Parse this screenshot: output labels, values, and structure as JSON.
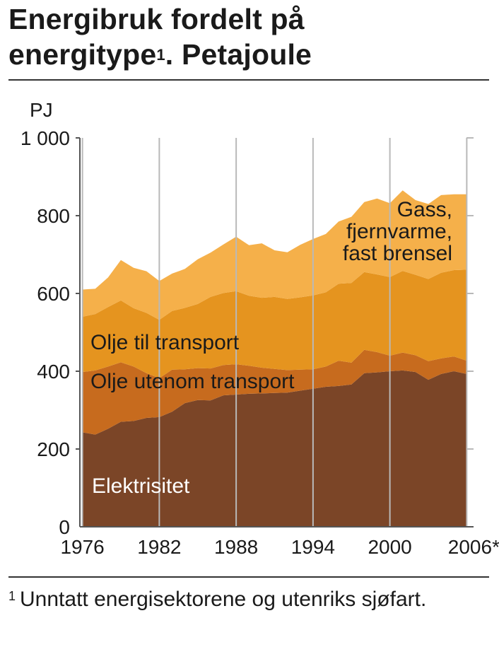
{
  "title": {
    "main_line1": "Energibruk fordelt på",
    "main_line2_prefix": "energitype",
    "footnote_marker": "1",
    "main_line2_suffix": ". Petajoule"
  },
  "footnote": {
    "marker": "1",
    "text": "Unntatt energisektorene og utenriks sjøfart."
  },
  "chart_data": {
    "type": "area",
    "stacked": true,
    "unit_label": "PJ",
    "x": [
      1976,
      1977,
      1978,
      1979,
      1980,
      1981,
      1982,
      1983,
      1984,
      1985,
      1986,
      1987,
      1988,
      1989,
      1990,
      1991,
      1992,
      1993,
      1994,
      1995,
      1996,
      1997,
      1998,
      1999,
      2000,
      2001,
      2002,
      2003,
      2004,
      2005,
      2006
    ],
    "x_tick_labels": [
      "1976",
      "1982",
      "1988",
      "1994",
      "2000",
      "2006*"
    ],
    "x_tick_values": [
      1976,
      1982,
      1988,
      1994,
      2000,
      2006
    ],
    "y_tick_labels": [
      "0",
      "200",
      "400",
      "600",
      "800",
      "1 000"
    ],
    "y_tick_values": [
      0,
      200,
      400,
      600,
      800,
      1000
    ],
    "xlim": [
      1975.8,
      2006.2
    ],
    "ylim": [
      0,
      1000
    ],
    "grid": "vertical lines at x ticks",
    "series": [
      {
        "name": "Elektrisitet",
        "color": "#7b4527",
        "values": [
          243,
          237,
          252,
          270,
          272,
          280,
          282,
          296,
          318,
          326,
          325,
          338,
          340,
          342,
          343,
          344,
          345,
          350,
          355,
          360,
          362,
          366,
          395,
          397,
          400,
          402,
          398,
          378,
          393,
          400,
          393
        ]
      },
      {
        "name": "Olje utenom transport",
        "color": "#c76b1e",
        "values": [
          155,
          165,
          160,
          153,
          140,
          115,
          100,
          108,
          87,
          82,
          82,
          78,
          78,
          72,
          66,
          62,
          58,
          54,
          50,
          52,
          65,
          56,
          60,
          52,
          40,
          46,
          43,
          48,
          40,
          38,
          34
        ]
      },
      {
        "name": "Olje til transport",
        "color": "#e5941f",
        "values": [
          142,
          145,
          153,
          159,
          150,
          155,
          150,
          151,
          158,
          165,
          184,
          185,
          188,
          180,
          180,
          185,
          183,
          186,
          190,
          191,
          198,
          205,
          200,
          200,
          202,
          210,
          207,
          211,
          220,
          222,
          234
        ]
      },
      {
        "name": "Gass, fjernvarme, fast brensel",
        "color": "#f5b04a",
        "values": [
          70,
          65,
          76,
          104,
          104,
          107,
          100,
          96,
          100,
          115,
          114,
          125,
          140,
          130,
          140,
          120,
          120,
          135,
          145,
          150,
          160,
          170,
          180,
          195,
          190,
          207,
          192,
          193,
          200,
          195,
          194
        ]
      }
    ],
    "labels": {
      "gas": [
        "Gass,",
        "fjernvarme,",
        "fast brensel"
      ],
      "oil_transport": "Olje til transport",
      "oil_other": "Olje utenom transport",
      "electricity": "Elektrisitet"
    }
  }
}
